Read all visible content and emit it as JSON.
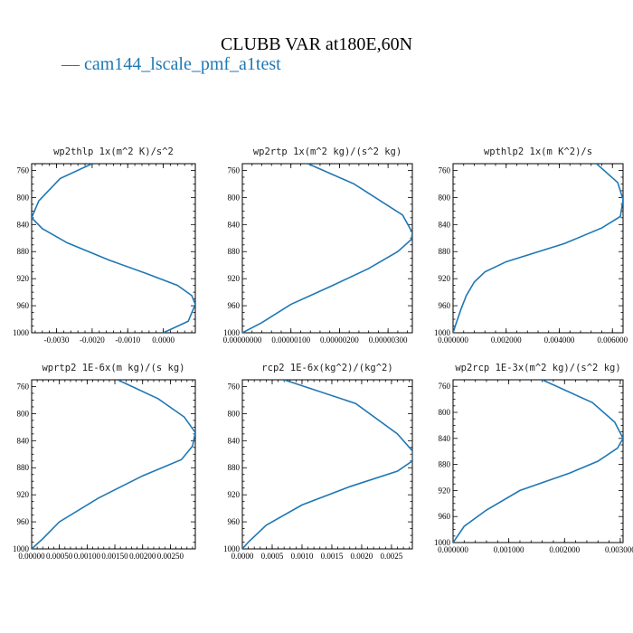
{
  "figure": {
    "title": "CLUBB VAR at180E,60N",
    "legend": [
      {
        "label": "— cam144_lscale_pmf_a1test",
        "color": "#1f77b4"
      }
    ]
  },
  "chart_data": [
    {
      "type": "line",
      "title": "wp2thlp  1x(m^2 K)/s^2",
      "xlim": [
        -0.0037,
        0.0009
      ],
      "ylim": [
        1000,
        750
      ],
      "xticks": [
        -0.003,
        -0.002,
        -0.001,
        0.0
      ],
      "xtick_labels": [
        "-0.0030",
        "-0.0020",
        "-0.0010",
        "0.0000"
      ],
      "yticks": [
        760,
        800,
        840,
        880,
        920,
        960,
        1000
      ],
      "series": [
        {
          "x": [
            -0.002,
            -0.0029,
            -0.0035,
            -0.0037,
            -0.0034,
            -0.0027,
            -0.0015,
            -0.0005,
            0.0004,
            0.0008,
            0.0009,
            0.0007,
            0.0
          ],
          "y": [
            750,
            772,
            805,
            830,
            846,
            867,
            893,
            912,
            930,
            945,
            958,
            983,
            1000
          ]
        }
      ]
    },
    {
      "type": "line",
      "title": "wp2rtp  1x(m^2 kg)/(s^2 kg)",
      "xlim": [
        0,
        3.5e-06
      ],
      "ylim": [
        1000,
        750
      ],
      "xticks": [
        0,
        1e-06,
        2e-06,
        3e-06
      ],
      "xtick_labels": [
        "0.00000000",
        "0.00000100",
        "0.00000200",
        "0.00000300"
      ],
      "yticks": [
        760,
        800,
        840,
        880,
        920,
        960,
        1000
      ],
      "series": [
        {
          "x": [
            1.35e-06,
            2.3e-06,
            3.3e-06,
            3.5e-06,
            3.48e-06,
            3.2e-06,
            2.6e-06,
            1.8e-06,
            1e-06,
            4e-07,
            0
          ],
          "y": [
            750,
            780,
            826,
            852,
            862,
            880,
            905,
            932,
            958,
            985,
            1000
          ]
        }
      ]
    },
    {
      "type": "line",
      "title": "wpthlp2  1x(m K^2)/s",
      "xlim": [
        0,
        0.0064
      ],
      "ylim": [
        1000,
        750
      ],
      "xticks": [
        0,
        0.002,
        0.004,
        0.006
      ],
      "xtick_labels": [
        "0.000000",
        "0.002000",
        "0.004000",
        "0.006000"
      ],
      "yticks": [
        760,
        800,
        840,
        880,
        920,
        960,
        1000
      ],
      "series": [
        {
          "x": [
            0.0054,
            0.0062,
            0.0064,
            0.0063,
            0.0056,
            0.0042,
            0.002,
            0.0012,
            0.0008,
            0.0005,
            0.0003,
            0.0001,
            0
          ],
          "y": [
            750,
            778,
            803,
            828,
            845,
            868,
            895,
            910,
            925,
            945,
            965,
            988,
            1000
          ]
        }
      ]
    },
    {
      "type": "line",
      "title": "wprtp2  1E-6x(m kg)/(s kg)",
      "xlim": [
        0,
        0.00295
      ],
      "ylim": [
        1000,
        750
      ],
      "xticks": [
        0,
        0.0005,
        0.001,
        0.0015,
        0.002,
        0.0025
      ],
      "xtick_labels": [
        "0.00000",
        "0.00050",
        "0.00100",
        "0.00150",
        "0.00200",
        "0.00250"
      ],
      "yticks": [
        760,
        800,
        840,
        880,
        920,
        960,
        1000
      ],
      "series": [
        {
          "x": [
            0.00155,
            0.00228,
            0.00275,
            0.00295,
            0.0029,
            0.0027,
            0.002,
            0.0012,
            0.0005,
            0.0002,
            0
          ],
          "y": [
            750,
            778,
            805,
            828,
            848,
            868,
            892,
            925,
            960,
            985,
            1000
          ]
        }
      ]
    },
    {
      "type": "line",
      "title": "rcp2  1E-6x(kg^2)/(kg^2)",
      "xlim": [
        0,
        0.00285
      ],
      "ylim": [
        1000,
        750
      ],
      "xticks": [
        0,
        0.0005,
        0.001,
        0.0015,
        0.002,
        0.0025
      ],
      "xtick_labels": [
        "0.0000",
        "0.0005",
        "0.0010",
        "0.0015",
        "0.0020",
        "0.0025"
      ],
      "yticks": [
        760,
        800,
        840,
        880,
        920,
        960,
        1000
      ],
      "series": [
        {
          "x": [
            0.0007,
            0.0019,
            0.0026,
            0.00285,
            0.00285,
            0.0026,
            0.0018,
            0.001,
            0.0004,
            0.0001,
            0
          ],
          "y": [
            750,
            785,
            830,
            855,
            870,
            885,
            908,
            935,
            965,
            990,
            1000
          ]
        }
      ]
    },
    {
      "type": "line",
      "title": "wp2rcp  1E-3x(m^2 kg)/(s^2 kg)",
      "xlim": [
        0,
        0.00305
      ],
      "ylim": [
        1000,
        750
      ],
      "xticks": [
        0,
        0.001,
        0.002,
        0.003
      ],
      "xtick_labels": [
        "0.000000",
        "0.001000",
        "0.002000",
        "0.003000"
      ],
      "yticks": [
        760,
        800,
        840,
        880,
        920,
        960,
        1000
      ],
      "series": [
        {
          "x": [
            0.0016,
            0.0025,
            0.0029,
            0.00305,
            0.00295,
            0.0026,
            0.0021,
            0.0012,
            0.0006,
            0.0002,
            0
          ],
          "y": [
            750,
            785,
            815,
            840,
            855,
            875,
            893,
            920,
            950,
            975,
            1000
          ]
        }
      ]
    }
  ]
}
